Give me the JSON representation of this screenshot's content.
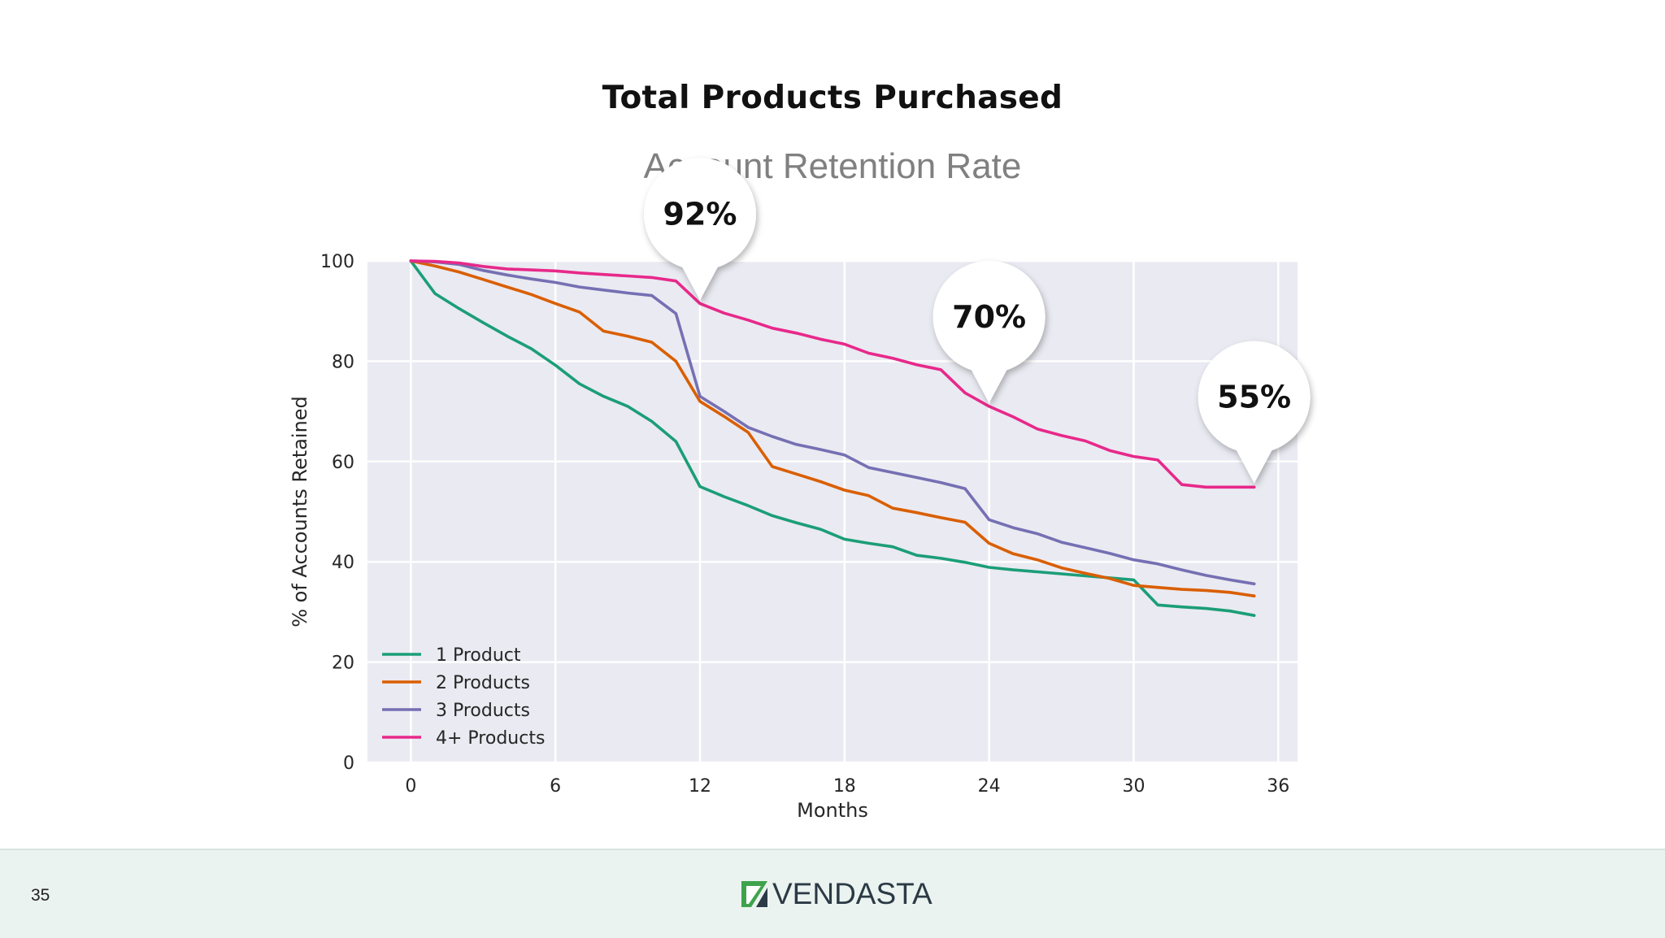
{
  "slide": {
    "title": "Total Products Purchased",
    "subtitle": "Account Retention Rate",
    "page_number": "35"
  },
  "brand": {
    "name": "VENDASTA",
    "logo_icon": "vendasta-logo-icon",
    "logo_color": "#3fa34d"
  },
  "callouts": [
    {
      "label": "92%",
      "series": "4+ Products",
      "x": 12,
      "y": 91.5
    },
    {
      "label": "70%",
      "series": "4+ Products",
      "x": 24,
      "y": 71
    },
    {
      "label": "55%",
      "series": "4+ Products",
      "x": 35,
      "y": 55
    }
  ],
  "chart_data": {
    "type": "line",
    "title": "",
    "xlabel": "Months",
    "ylabel": "% of Accounts Retained",
    "xlim": [
      -1.8,
      36.8
    ],
    "ylim": [
      0,
      100
    ],
    "xticks": [
      0,
      6,
      12,
      18,
      24,
      30,
      36
    ],
    "yticks": [
      0,
      20,
      40,
      60,
      80,
      100
    ],
    "grid": true,
    "background": "#eaeaf2",
    "legend_position": "lower-left",
    "x": [
      0,
      1,
      2,
      3,
      4,
      5,
      6,
      7,
      8,
      9,
      10,
      11,
      12,
      13,
      14,
      15,
      16,
      17,
      18,
      19,
      20,
      21,
      22,
      23,
      24,
      25,
      26,
      27,
      28,
      29,
      30,
      31,
      32,
      33,
      34,
      35
    ],
    "series": [
      {
        "name": "1 Product",
        "color": "#1b9e77",
        "values": [
          100,
          93.5,
          90.5,
          87.7,
          85,
          82.5,
          79.2,
          75.5,
          73,
          71,
          68,
          64,
          55,
          53,
          51.2,
          49.2,
          47.8,
          46.5,
          44.5,
          43.7,
          43,
          41.3,
          40.7,
          39.9,
          38.9,
          38.4,
          38,
          37.6,
          37.2,
          36.8,
          36.4,
          31.4,
          31,
          30.7,
          30.2,
          29.3
        ]
      },
      {
        "name": "2 Products",
        "color": "#d95f02",
        "values": [
          100,
          99,
          97.8,
          96.3,
          94.8,
          93.3,
          91.5,
          89.8,
          86,
          85,
          83.8,
          80,
          72,
          69,
          65.8,
          59,
          57.5,
          56,
          54.3,
          53.2,
          50.7,
          49.8,
          48.8,
          47.9,
          43.7,
          41.6,
          40.4,
          38.8,
          37.7,
          36.7,
          35.3,
          34.9,
          34.5,
          34.3,
          33.9,
          33.2
        ]
      },
      {
        "name": "3 Products",
        "color": "#7570b3",
        "values": [
          100,
          99.8,
          99.3,
          98.1,
          97.2,
          96.4,
          95.7,
          94.8,
          94.2,
          93.6,
          93.1,
          89.5,
          73,
          70,
          66.8,
          65,
          63.4,
          62.4,
          61.3,
          58.8,
          57.8,
          56.8,
          55.8,
          54.6,
          48.4,
          46.8,
          45.6,
          43.9,
          42.8,
          41.7,
          40.4,
          39.6,
          38.4,
          37.3,
          36.4,
          35.6
        ]
      },
      {
        "name": "4+ Products",
        "color": "#e7298a",
        "values": [
          100,
          99.9,
          99.6,
          98.9,
          98.4,
          98.2,
          98,
          97.6,
          97.3,
          97,
          96.7,
          96,
          91.5,
          89.6,
          88.2,
          86.6,
          85.6,
          84.4,
          83.4,
          81.6,
          80.6,
          79.3,
          78.3,
          73.7,
          71,
          68.9,
          66.5,
          65.2,
          64.1,
          62.2,
          61,
          60.3,
          55.4,
          54.9,
          54.9,
          54.9
        ]
      }
    ]
  }
}
